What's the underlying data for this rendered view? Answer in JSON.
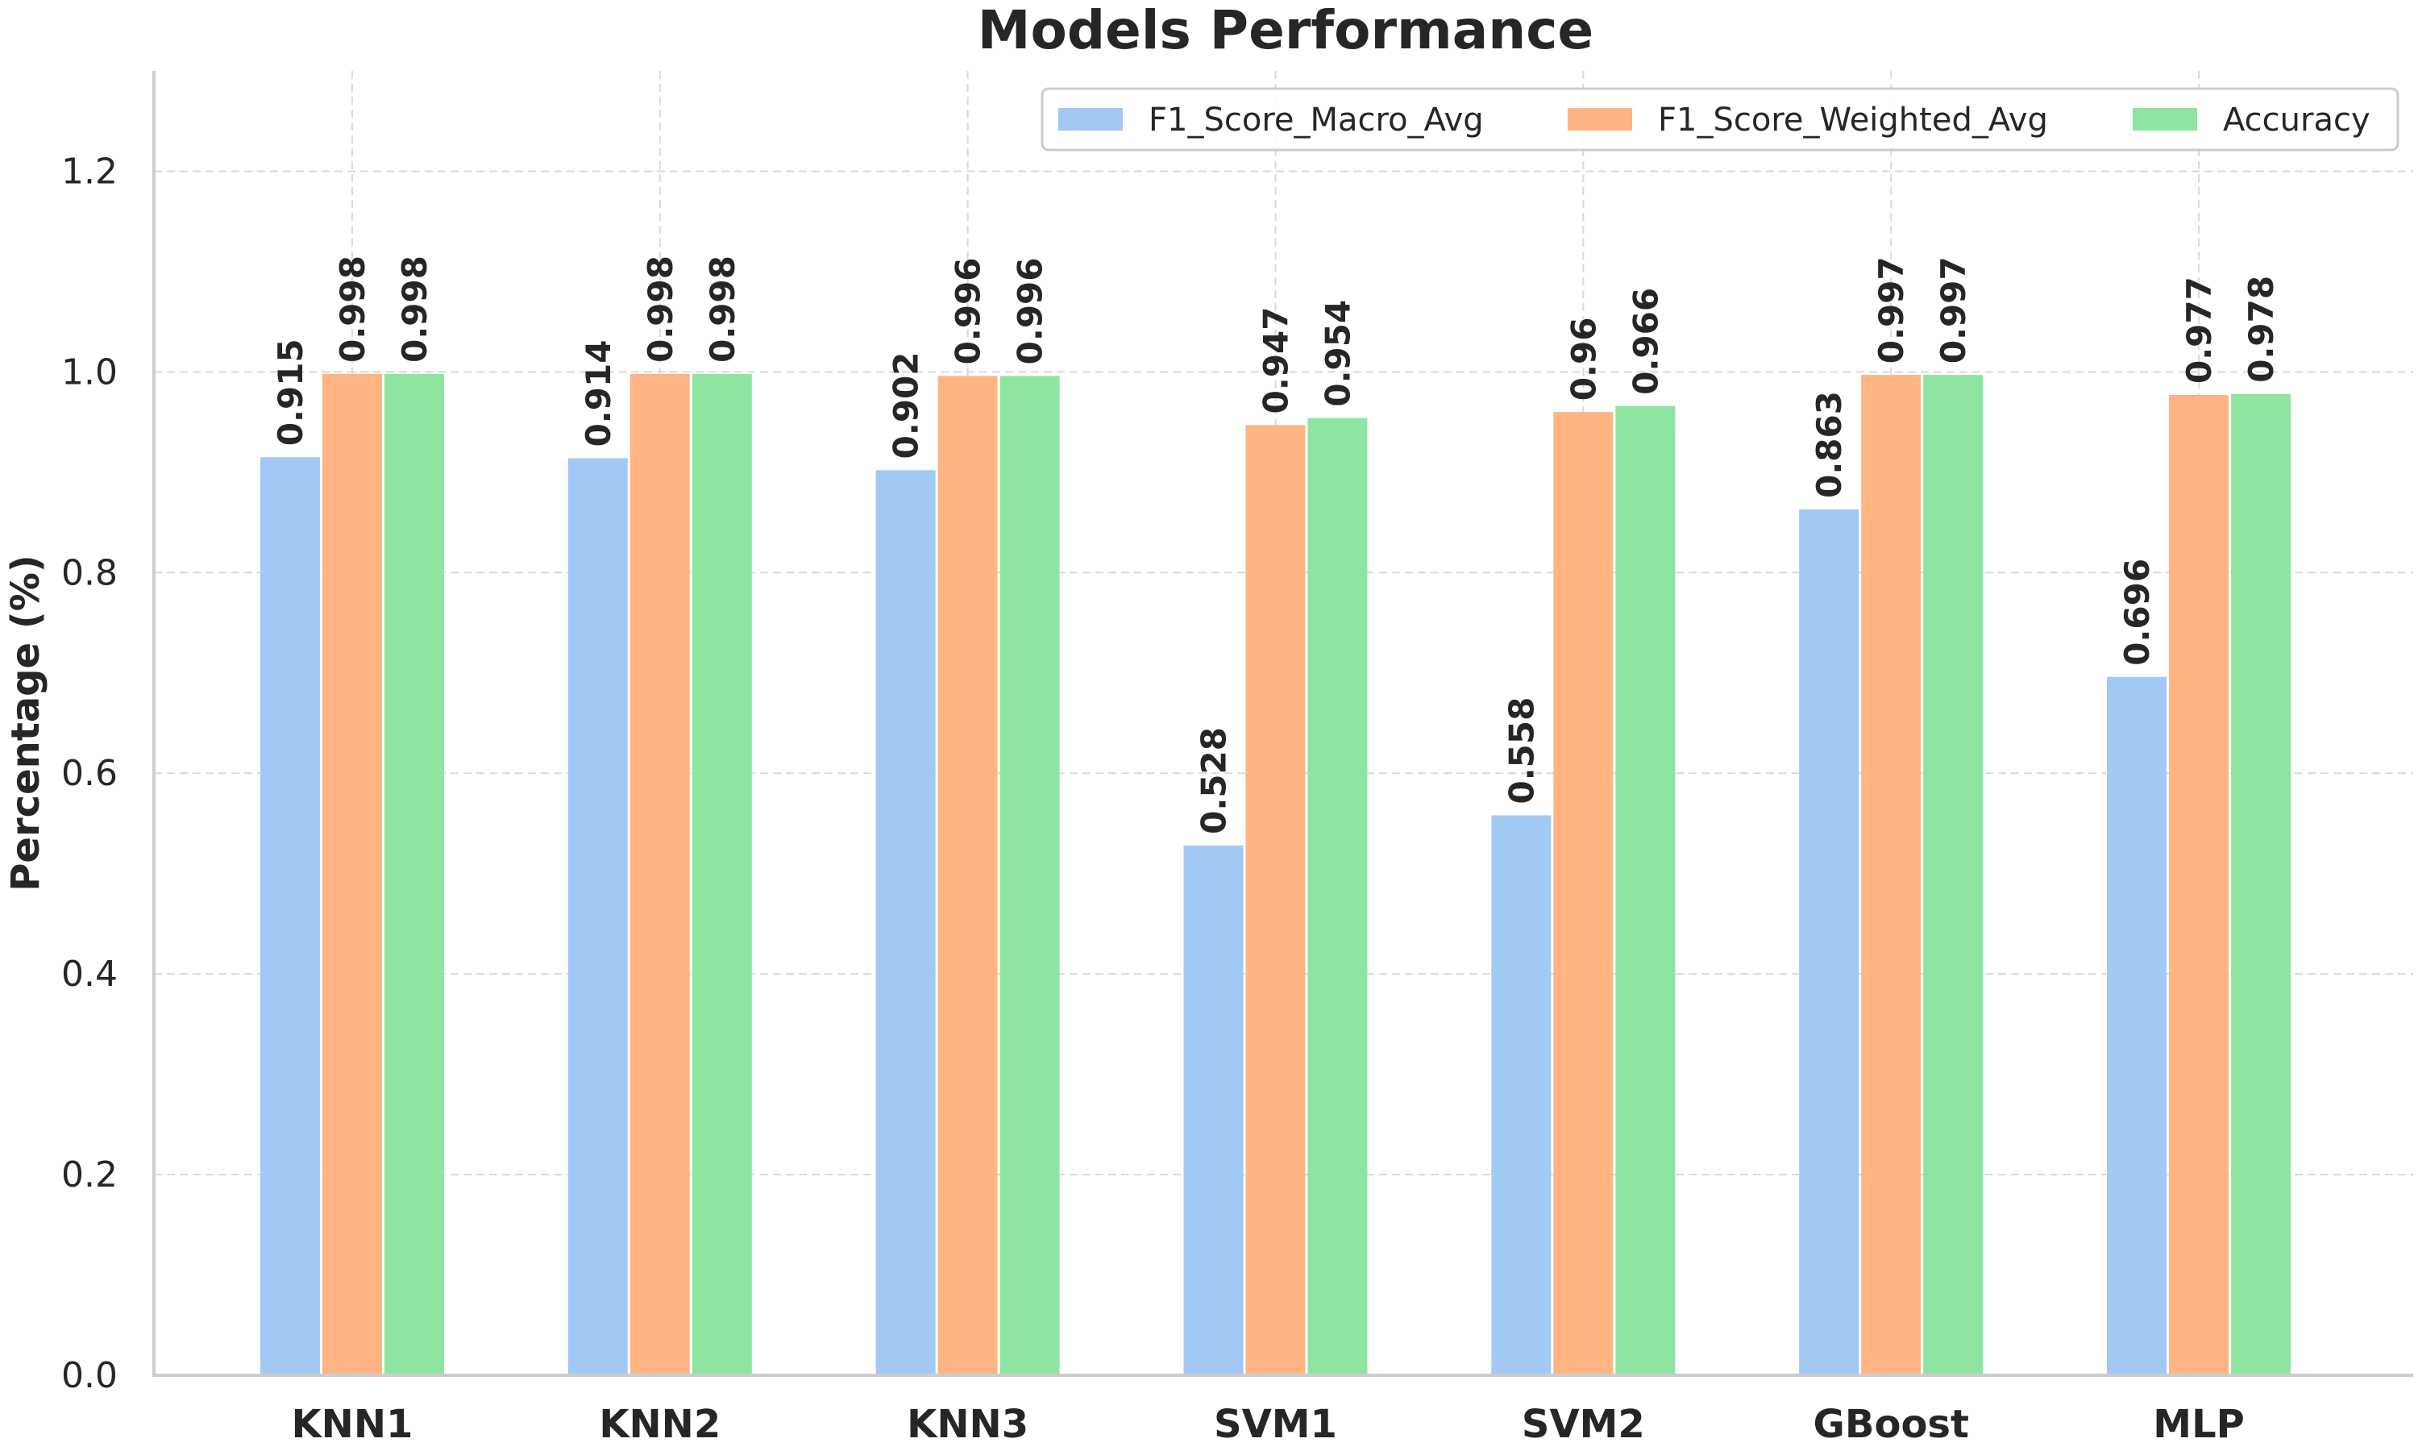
{
  "chart_data": {
    "type": "bar",
    "title": "Models Performance",
    "xlabel": "",
    "ylabel": "Percentage (%)",
    "ylim": [
      0,
      1.3
    ],
    "yticks": [
      "0.0",
      "0.2",
      "0.4",
      "0.6",
      "0.8",
      "1.0",
      "1.2"
    ],
    "categories": [
      "KNN1",
      "KNN2",
      "KNN3",
      "SVM1",
      "SVM2",
      "GBoost",
      "MLP"
    ],
    "series": [
      {
        "name": "F1_Score_Macro_Avg",
        "color": "#a1c9f4",
        "values": [
          0.915,
          0.914,
          0.902,
          0.528,
          0.558,
          0.863,
          0.696
        ],
        "labels": [
          "0.915",
          "0.914",
          "0.902",
          "0.528",
          "0.558",
          "0.863",
          "0.696"
        ]
      },
      {
        "name": "F1_Score_Weighted_Avg",
        "color": "#ffb482",
        "values": [
          0.998,
          0.998,
          0.996,
          0.947,
          0.96,
          0.997,
          0.977
        ],
        "labels": [
          "0.998",
          "0.998",
          "0.996",
          "0.947",
          "0.96",
          "0.997",
          "0.977"
        ]
      },
      {
        "name": "Accuracy",
        "color": "#8de5a1",
        "values": [
          0.998,
          0.998,
          0.996,
          0.954,
          0.966,
          0.997,
          0.978
        ],
        "labels": [
          "0.998",
          "0.998",
          "0.996",
          "0.954",
          "0.966",
          "0.997",
          "0.978"
        ]
      }
    ],
    "grid": true,
    "legend_position": "top-right"
  }
}
